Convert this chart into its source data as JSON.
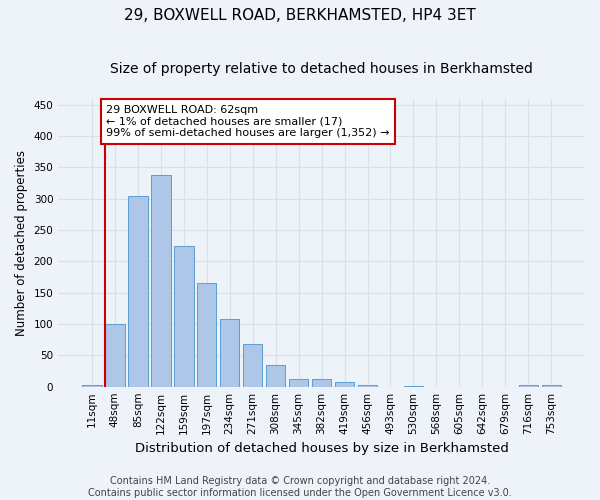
{
  "title": "29, BOXWELL ROAD, BERKHAMSTED, HP4 3ET",
  "subtitle": "Size of property relative to detached houses in Berkhamsted",
  "xlabel": "Distribution of detached houses by size in Berkhamsted",
  "ylabel": "Number of detached properties",
  "footer_line1": "Contains HM Land Registry data © Crown copyright and database right 2024.",
  "footer_line2": "Contains public sector information licensed under the Open Government Licence v3.0.",
  "bar_labels": [
    "11sqm",
    "48sqm",
    "85sqm",
    "122sqm",
    "159sqm",
    "197sqm",
    "234sqm",
    "271sqm",
    "308sqm",
    "345sqm",
    "382sqm",
    "419sqm",
    "456sqm",
    "493sqm",
    "530sqm",
    "568sqm",
    "605sqm",
    "642sqm",
    "679sqm",
    "716sqm",
    "753sqm"
  ],
  "bar_values": [
    3,
    100,
    305,
    338,
    225,
    165,
    108,
    68,
    35,
    12,
    12,
    7,
    2,
    0,
    1,
    0,
    0,
    0,
    0,
    2,
    2
  ],
  "bar_color": "#aec6e8",
  "bar_edge_color": "#5a9fd4",
  "ylim": [
    0,
    460
  ],
  "yticks": [
    0,
    50,
    100,
    150,
    200,
    250,
    300,
    350,
    400,
    450
  ],
  "vline_color": "#cc0000",
  "vline_x": 0.5,
  "annotation_text": "29 BOXWELL ROAD: 62sqm\n← 1% of detached houses are smaller (17)\n99% of semi-detached houses are larger (1,352) →",
  "annotation_box_color": "#ffffff",
  "annotation_box_edgecolor": "#cc0000",
  "background_color": "#eef2f9",
  "grid_color": "#d8e0ee",
  "title_fontsize": 11,
  "subtitle_fontsize": 10,
  "xlabel_fontsize": 9.5,
  "ylabel_fontsize": 8.5,
  "tick_fontsize": 7.5,
  "annotation_fontsize": 8,
  "footer_fontsize": 7
}
